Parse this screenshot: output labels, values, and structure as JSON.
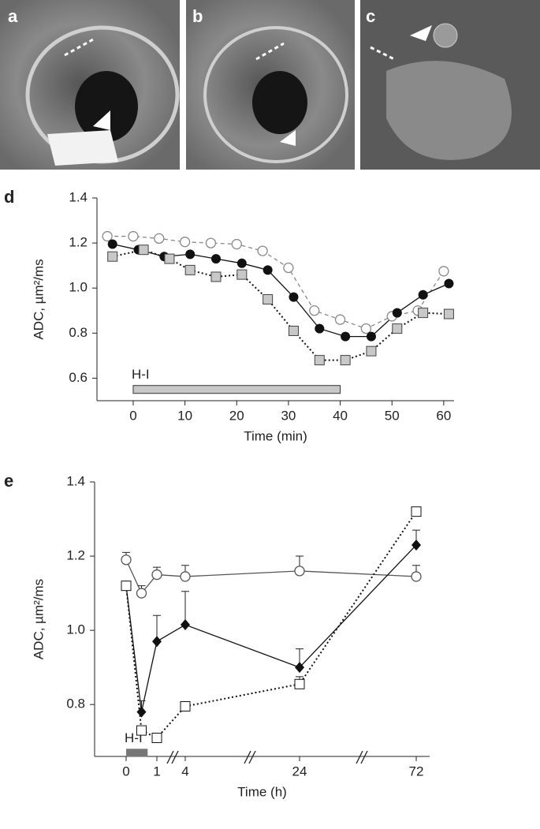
{
  "image_panels": [
    {
      "label": "a"
    },
    {
      "label": "b"
    },
    {
      "label": "c"
    }
  ],
  "chart_data": [
    {
      "type": "line",
      "panel_label": "d",
      "xlabel": "Time (min)",
      "ylabel": "ADC, µm²/ms",
      "xlim": [
        -7,
        62
      ],
      "xticks": [
        0,
        10,
        20,
        30,
        40,
        50,
        60
      ],
      "ylim": [
        0.5,
        1.4
      ],
      "yticks": [
        {
          "value": 0.6,
          "label": "0.6"
        },
        {
          "value": 0.8,
          "label": "0.8"
        },
        {
          "value": 1.0,
          "label": "1.0"
        },
        {
          "value": 1.2,
          "label": "1.2"
        },
        {
          "value": 1.4,
          "label": "1.4"
        }
      ],
      "bar_annotation": {
        "text": "H-I",
        "x": [
          0,
          40
        ],
        "y": 0.55,
        "color": "#c8c8c8"
      },
      "series": [
        {
          "marker": "circle-open",
          "color": "#888888",
          "dash": "5,4",
          "x": [
            -5,
            0,
            5,
            10,
            15,
            20,
            25,
            30,
            35,
            40,
            45,
            50,
            55,
            60
          ],
          "values": [
            1.23,
            1.23,
            1.22,
            1.205,
            1.2,
            1.195,
            1.165,
            1.09,
            0.9,
            0.86,
            0.82,
            0.875,
            0.9,
            1.075
          ]
        },
        {
          "marker": "circle-filled",
          "color": "#111111",
          "dash": "",
          "x": [
            -4,
            1,
            6,
            11,
            16,
            21,
            26,
            31,
            36,
            41,
            46,
            51,
            56,
            61
          ],
          "values": [
            1.195,
            1.17,
            1.14,
            1.15,
            1.13,
            1.11,
            1.08,
            0.96,
            0.82,
            0.785,
            0.785,
            0.89,
            0.97,
            1.02
          ]
        },
        {
          "marker": "square-gray",
          "color": "#111111",
          "dash": "2,3",
          "x": [
            -4,
            2,
            7,
            11,
            16,
            21,
            26,
            31,
            36,
            41,
            46,
            51,
            56,
            61
          ],
          "values": [
            1.14,
            1.17,
            1.13,
            1.08,
            1.05,
            1.06,
            0.95,
            0.81,
            0.68,
            0.68,
            0.72,
            0.82,
            0.89,
            0.885
          ]
        }
      ]
    },
    {
      "type": "line",
      "panel_label": "e",
      "xlabel": "Time (h)",
      "ylabel": "ADC, µm²/ms",
      "xticks": [
        0,
        1,
        4,
        24,
        72
      ],
      "ylim": [
        0.66,
        1.4
      ],
      "yticks": [
        {
          "value": 0.8,
          "label": "0.8"
        },
        {
          "value": 1.0,
          "label": "1.0"
        },
        {
          "value": 1.2,
          "label": "1.2"
        },
        {
          "value": 1.4,
          "label": "1.4"
        }
      ],
      "bar_annotation": {
        "text": "H-I",
        "x": [
          0,
          0.7
        ],
        "y": 0.67,
        "color": "#777777"
      },
      "x": [
        0,
        0.5,
        1,
        4,
        24,
        72
      ],
      "series": [
        {
          "marker": "circle-open",
          "color": "#555555",
          "dash": "",
          "values": [
            1.19,
            1.1,
            1.15,
            1.145,
            1.16,
            1.145
          ],
          "errors": [
            0.02,
            0.02,
            0.02,
            0.03,
            0.04,
            0.03
          ]
        },
        {
          "marker": "diamond",
          "color": "#111111",
          "dash": "",
          "values": [
            1.12,
            0.78,
            0.97,
            1.015,
            0.9,
            1.23
          ],
          "errors": [
            null,
            0.03,
            0.07,
            0.09,
            0.05,
            0.04
          ]
        },
        {
          "marker": "square-open",
          "color": "#111111",
          "dash": "2,3",
          "values": [
            1.12,
            0.73,
            0.71,
            0.795,
            0.855,
            1.32
          ],
          "errors": [
            null,
            null,
            null,
            null,
            0.02,
            null
          ]
        }
      ]
    }
  ]
}
